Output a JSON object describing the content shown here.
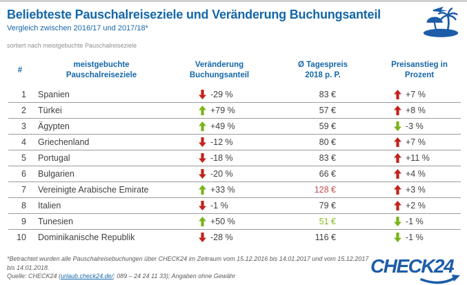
{
  "header": {
    "title": "Beliebteste Pauschalreiseziele und Veränderung Buchungsanteil",
    "subtitle": "Vergleich zwischen 2016/17 und 2017/18*",
    "sort_note": "sortiert nach meistgebuchte Pauschalreiseziele",
    "icon": "island-palm-airplane-icon"
  },
  "table": {
    "header": {
      "rank": "#",
      "col2_line1": "meistgebuchte",
      "col2_line2": "Pauschalreiseziele",
      "col3_line1": "Veränderung",
      "col3_line2": "Buchungsanteil",
      "col4_line1": "Ø Tagespreis",
      "col4_line2": "2018 p. P.",
      "col5_line1": "Preisanstieg in",
      "col5_line2": "Prozent"
    },
    "rows": [
      {
        "rank": "1",
        "destination": "Spanien",
        "booking_change": "-29 %",
        "booking_trend": "down",
        "booking_trend_color": "red",
        "price": "83 €",
        "price_color": "default",
        "price_change": "+7 %",
        "price_trend": "up",
        "price_trend_color": "red"
      },
      {
        "rank": "2",
        "destination": "Türkei",
        "booking_change": "+79 %",
        "booking_trend": "up",
        "booking_trend_color": "green",
        "price": "57 €",
        "price_color": "default",
        "price_change": "+8 %",
        "price_trend": "up",
        "price_trend_color": "red"
      },
      {
        "rank": "3",
        "destination": "Ägypten",
        "booking_change": "+49 %",
        "booking_trend": "up",
        "booking_trend_color": "green",
        "price": "59 €",
        "price_color": "default",
        "price_change": "-3 %",
        "price_trend": "down",
        "price_trend_color": "green"
      },
      {
        "rank": "4",
        "destination": "Griechenland",
        "booking_change": "-12 %",
        "booking_trend": "down",
        "booking_trend_color": "red",
        "price": "80 €",
        "price_color": "default",
        "price_change": "+7 %",
        "price_trend": "up",
        "price_trend_color": "red"
      },
      {
        "rank": "5",
        "destination": "Portugal",
        "booking_change": "-18 %",
        "booking_trend": "down",
        "booking_trend_color": "red",
        "price": "83 €",
        "price_color": "default",
        "price_change": "+11 %",
        "price_trend": "up",
        "price_trend_color": "red"
      },
      {
        "rank": "6",
        "destination": "Bulgarien",
        "booking_change": "-20 %",
        "booking_trend": "down",
        "booking_trend_color": "red",
        "price": "66 €",
        "price_color": "default",
        "price_change": "+4 %",
        "price_trend": "up",
        "price_trend_color": "red"
      },
      {
        "rank": "7",
        "destination": "Vereinigte Arabische Emirate",
        "booking_change": "+33 %",
        "booking_trend": "up",
        "booking_trend_color": "green",
        "price": "128 €",
        "price_color": "red",
        "price_change": "+3 %",
        "price_trend": "up",
        "price_trend_color": "red"
      },
      {
        "rank": "8",
        "destination": "Italien",
        "booking_change": "-1 %",
        "booking_trend": "down",
        "booking_trend_color": "red",
        "price": "79 €",
        "price_color": "default",
        "price_change": "+2 %",
        "price_trend": "up",
        "price_trend_color": "red"
      },
      {
        "rank": "9",
        "destination": "Tunesien",
        "booking_change": "+50 %",
        "booking_trend": "up",
        "booking_trend_color": "green",
        "price": "51 €",
        "price_color": "green",
        "price_change": "-1 %",
        "price_trend": "down",
        "price_trend_color": "green"
      },
      {
        "rank": "10",
        "destination": "Dominikanische Republik",
        "booking_change": "-28 %",
        "booking_trend": "down",
        "booking_trend_color": "red",
        "price": "116 €",
        "price_color": "default",
        "price_change": "-1 %",
        "price_trend": "down",
        "price_trend_color": "green"
      }
    ]
  },
  "footer": {
    "footnote_line1": "*Betrachtet wurden alle Pauschalreisebuchungen über CHECK24 im Zeitraum  vom 15.12.2016 bis 14.01.2017 und vom 15.12.2017",
    "footnote_line2": "bis 14.01.2018.",
    "source_prefix": "Quelle: CHECK24 (",
    "source_link": "urlaub.check24.de/",
    "source_suffix": "; 089 – 24 24 11 33); Angaben ohne Gewähr",
    "logo_text": "CHECK24"
  },
  "colors": {
    "accent_blue": "#1467a9",
    "logo_blue": "#1d5ca8",
    "arrow_red": "#c2241c",
    "arrow_green": "#7ab41c",
    "price_highlight_red": "#c94b4e",
    "price_highlight_green": "#85bb1f",
    "text_dark": "#404040",
    "row_line_gray": "#9a9a9a"
  },
  "chart_data": {
    "type": "table",
    "title": "Beliebteste Pauschalreiseziele und Veränderung Buchungsanteil",
    "subtitle": "Vergleich zwischen 2016/17 und 2017/18*",
    "columns": [
      "#",
      "meistgebuchte Pauschalreiseziele",
      "Veränderung Buchungsanteil (%)",
      "Ø Tagespreis 2018 p. P. (€)",
      "Preisanstieg in Prozent (%)"
    ],
    "rows": [
      [
        1,
        "Spanien",
        -29,
        83,
        7
      ],
      [
        2,
        "Türkei",
        79,
        57,
        8
      ],
      [
        3,
        "Ägypten",
        49,
        59,
        -3
      ],
      [
        4,
        "Griechenland",
        -12,
        80,
        7
      ],
      [
        5,
        "Portugal",
        -18,
        83,
        11
      ],
      [
        6,
        "Bulgarien",
        -20,
        66,
        4
      ],
      [
        7,
        "Vereinigte Arabische Emirate",
        33,
        128,
        3
      ],
      [
        8,
        "Italien",
        -1,
        79,
        2
      ],
      [
        9,
        "Tunesien",
        50,
        51,
        -1
      ],
      [
        10,
        "Dominikanische Republik",
        -28,
        116,
        -1
      ]
    ]
  }
}
